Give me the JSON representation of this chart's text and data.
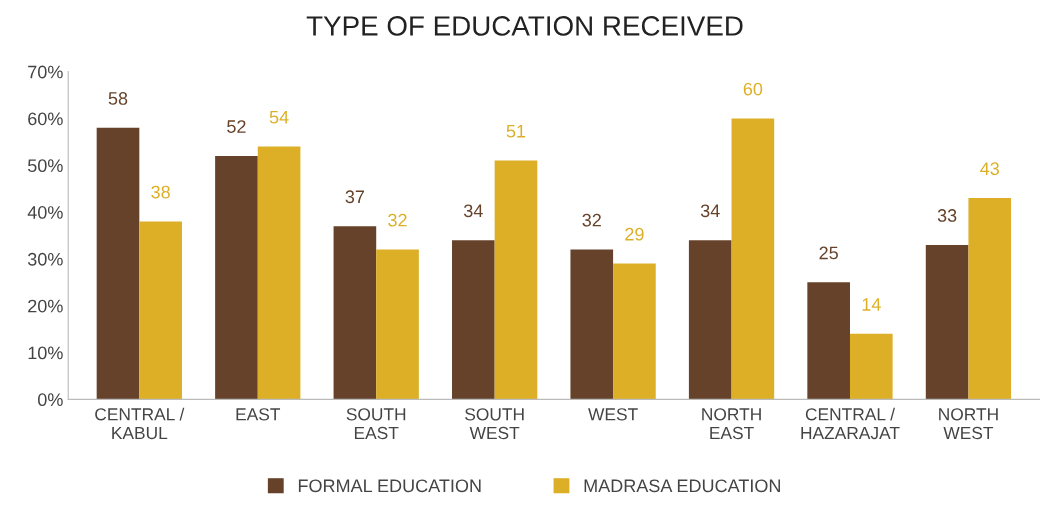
{
  "chart_data": {
    "type": "bar",
    "title": "TYPE OF EDUCATION RECEIVED",
    "categories": [
      "CENTRAL /\nKABUL",
      "EAST",
      "SOUTH\nEAST",
      "SOUTH\nWEST",
      "WEST",
      "NORTH\nEAST",
      "CENTRAL /\nHAZARAJAT",
      "NORTH\nWEST"
    ],
    "series": [
      {
        "name": "FORMAL EDUCATION",
        "color": "#66422a",
        "values": [
          58,
          52,
          37,
          34,
          32,
          34,
          25,
          33
        ]
      },
      {
        "name": "MADRASA EDUCATION",
        "color": "#dcaf27",
        "values": [
          38,
          54,
          32,
          51,
          29,
          60,
          14,
          43
        ]
      }
    ],
    "ylim": [
      0,
      70
    ],
    "yticks": [
      {
        "value": 0,
        "label": "0%"
      },
      {
        "value": 10,
        "label": "10%"
      },
      {
        "value": 20,
        "label": "20%"
      },
      {
        "value": 30,
        "label": "30%"
      },
      {
        "value": 40,
        "label": "40%"
      },
      {
        "value": 50,
        "label": "50%"
      },
      {
        "value": 60,
        "label": "60%"
      },
      {
        "value": 70,
        "label": "70%"
      }
    ],
    "data_labels": true,
    "grid": false,
    "legend": "bottom"
  }
}
